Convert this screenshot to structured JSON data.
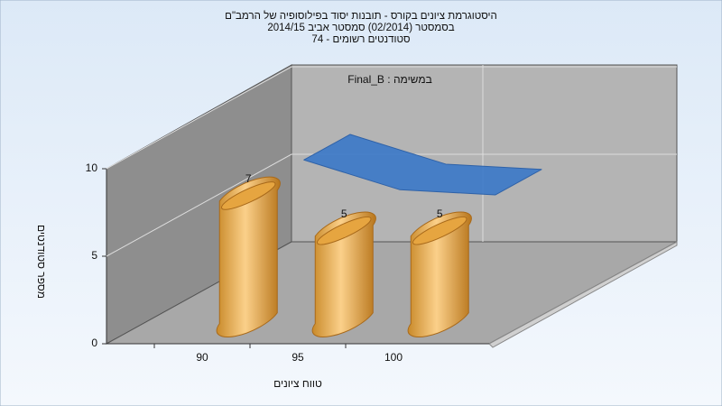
{
  "chart_data": {
    "type": "bar",
    "title_lines": [
      "היסטוגרמת ציונים בקורס - תובנות יסוד בפילוסופיה של הרמב\"ם",
      "בסמסטר  (02/2014)  סמסטר אביב 2014/15",
      "סטודנטים רשומים - 74"
    ],
    "legend_label": "Final_B : במשימה",
    "xlabel": "טווח ציונים",
    "ylabel": "מספר סטודנטים",
    "categories": [
      "90",
      "95",
      "100"
    ],
    "values": [
      7,
      5,
      5
    ],
    "color": "#e8a33a",
    "curve": {
      "type": "area",
      "values": [
        7.3,
        5.6,
        5.3
      ],
      "color": "#3a78c8"
    },
    "ylim": [
      0,
      10
    ],
    "yticks": [
      0,
      5,
      10
    ],
    "grid": true
  }
}
